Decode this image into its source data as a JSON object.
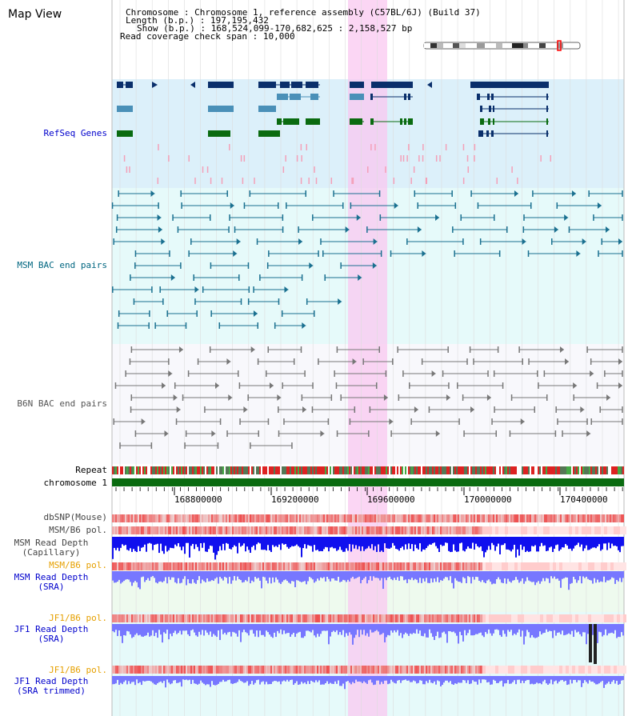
{
  "header": {
    "title": "Map View"
  },
  "info": {
    "chromosome_label": "Chromosome",
    "chromosome_value": "Chromosome 1, reference assembly (C57BL/6J) (Build 37)",
    "length_label": "Length (b.p.)",
    "length_value": "197,195,432",
    "show_label": "Show (b.p.)",
    "show_value": "168,524,099-170,682,625 : 2,158,527 bp",
    "coverage_label": "Read coverage check span",
    "coverage_value": "10,000"
  },
  "tracks": {
    "refseq": "RefSeq Genes",
    "msm_bac": "MSM BAC end pairs",
    "b6n_bac": "B6N BAC end pairs",
    "repeat": "Repeat",
    "chromosome": "chromosome 1",
    "dbsnp": "dbSNP(Mouse)",
    "msm_pol": "MSM/B6 pol.",
    "msm_depth_cap_1": "MSM Read Depth",
    "msm_depth_cap_2": "(Capillary)",
    "msm_pol_sra": "MSM/B6 pol.",
    "msm_depth_sra_1": "MSM Read Depth",
    "msm_depth_sra_2": "(SRA)",
    "jf1_pol": "JF1/B6 pol.",
    "jf1_depth_sra_1": "JF1 Read Depth",
    "jf1_depth_sra_2": "(SRA)",
    "jf1_pol_2": "JF1/B6 pol.",
    "jf1_depth_trim_1": "JF1 Read Depth",
    "jf1_depth_trim_2": "(SRA trimmed)"
  },
  "axis": {
    "ticks": [
      "168800000",
      "169200000",
      "169600000",
      "170000000",
      "170400000"
    ]
  },
  "colors": {
    "refseq_bg": "#dcf0fa",
    "msm_bg": "#e6fafa",
    "b6n_bg": "#f8f8fc",
    "highlight": "#f9c8f0",
    "gene_navy": "#0a2f6b",
    "gene_steel": "#4a90b8",
    "gene_green": "#0a6b10",
    "msm_pair": "#1a7090",
    "b6n_pair": "#777777",
    "chromosome_bar": "#0a6b10",
    "depth_blue": "#1010ee",
    "depth_light": "#7777ff",
    "pol_red": "#ee3333"
  }
}
